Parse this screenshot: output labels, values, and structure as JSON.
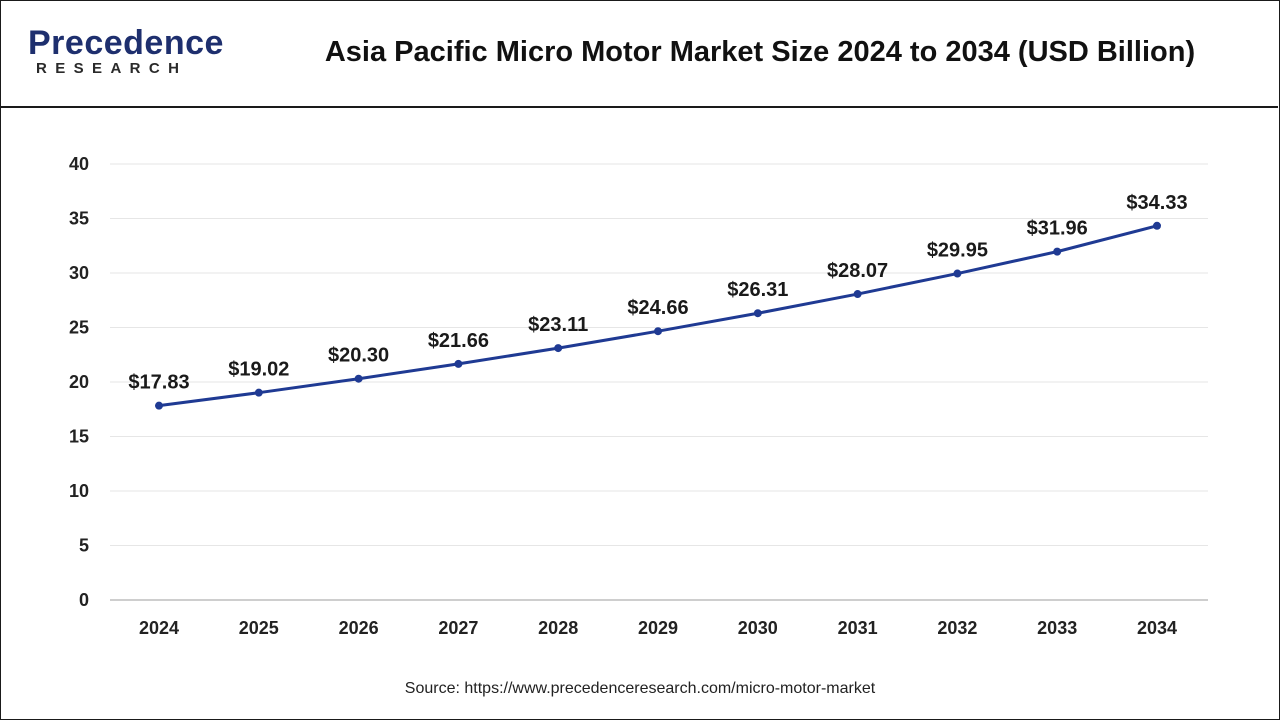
{
  "brand": {
    "name": "Precedence",
    "tagline": "RESEARCH",
    "color": "#1e2f6e"
  },
  "header": {
    "title": "Asia Pacific Micro Motor Market Size 2024 to 2034 (USD Billion)"
  },
  "footer": {
    "source": "Source: https://www.precedenceresearch.com/micro-motor-market"
  },
  "chart_data": {
    "type": "line",
    "title": "Asia Pacific Micro Motor Market Size 2024 to 2034 (USD Billion)",
    "xlabel": "",
    "ylabel": "",
    "categories": [
      "2024",
      "2025",
      "2026",
      "2027",
      "2028",
      "2029",
      "2030",
      "2031",
      "2032",
      "2033",
      "2034"
    ],
    "series": [
      {
        "values": [
          17.83,
          19.02,
          20.3,
          21.66,
          23.11,
          24.66,
          26.31,
          28.07,
          29.95,
          31.96,
          34.33
        ],
        "labels": [
          "$17.83",
          "$19.02",
          "$20.30",
          "$21.66",
          "$23.11",
          "$24.66",
          "$26.31",
          "$28.07",
          "$29.95",
          "$31.96",
          "$34.33"
        ],
        "color": "#1f3a93"
      }
    ],
    "ylim": [
      0,
      40
    ],
    "yticks": [
      0,
      5,
      10,
      15,
      20,
      25,
      30,
      35,
      40
    ],
    "grid": true,
    "legend": "none"
  }
}
